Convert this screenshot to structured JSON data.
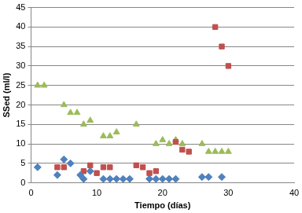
{
  "chart_data": {
    "type": "scatter",
    "x_label": "Tiempo (días)",
    "y_label": "SSed (ml/l)",
    "xlim": [
      0,
      40
    ],
    "xticks": [
      0,
      10,
      20,
      30,
      40
    ],
    "ylim": [
      0,
      45
    ],
    "yticks": [
      0,
      5,
      10,
      15,
      20,
      25,
      30,
      35,
      40,
      45
    ],
    "grid": "y",
    "series": [
      {
        "color": "#4f81bd",
        "marker": "diamond",
        "x": [
          1,
          4,
          5,
          6,
          7.5,
          8,
          9,
          11,
          12,
          13,
          14,
          15,
          18,
          19,
          20,
          21,
          22,
          26,
          27,
          29
        ],
        "values": [
          4,
          2,
          6,
          5,
          2,
          1,
          3,
          1,
          1,
          1,
          1,
          1,
          1,
          1,
          1,
          1,
          1,
          1.5,
          1.5,
          1.5
        ]
      },
      {
        "color": "#c0504d",
        "marker": "square",
        "x": [
          4,
          5,
          8,
          9,
          10,
          11,
          12,
          16,
          17,
          18,
          19,
          22,
          23,
          24,
          28,
          29,
          30
        ],
        "values": [
          4,
          4,
          3,
          4.5,
          2.5,
          4,
          4,
          4.5,
          4,
          2.5,
          3,
          10.5,
          8.5,
          8,
          40,
          35,
          30
        ]
      },
      {
        "color": "#9bbb59",
        "marker": "triangle",
        "x": [
          1,
          2,
          5,
          6,
          7,
          8,
          9,
          11,
          12,
          13,
          16,
          19,
          20,
          21,
          22,
          23,
          26,
          27,
          28,
          29,
          30
        ],
        "values": [
          25,
          25,
          20,
          18,
          18,
          15,
          16,
          12,
          12,
          13,
          15,
          10,
          11,
          10,
          11,
          10,
          10,
          8,
          8,
          8,
          8
        ]
      }
    ]
  }
}
